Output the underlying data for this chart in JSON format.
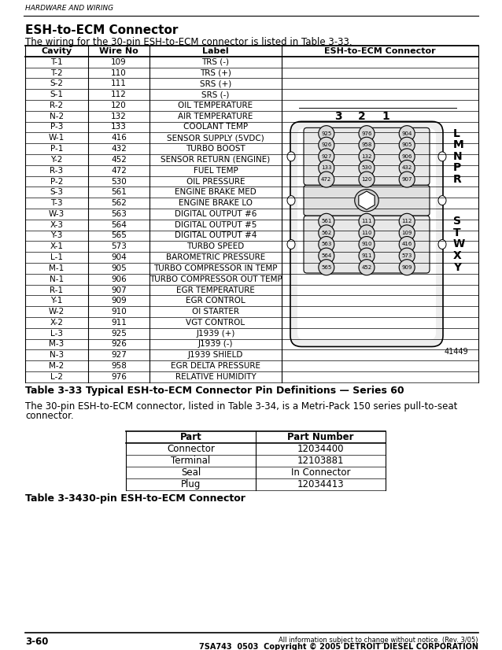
{
  "page_header": "HARDWARE AND WIRING",
  "title": "ESH-to-ECM Connector",
  "intro_text": "The wiring for the 30-pin ESH-to-ECM connector is listed in Table 3-33.",
  "table_headers": [
    "Cavity",
    "Wire No",
    "Label",
    "ESH-to-ECM Connector"
  ],
  "table_rows": [
    [
      "T-1",
      "109",
      "TRS (-)"
    ],
    [
      "T-2",
      "110",
      "TRS (+)"
    ],
    [
      "S-2",
      "111",
      "SRS (+)"
    ],
    [
      "S-1",
      "112",
      "SRS (-)"
    ],
    [
      "R-2",
      "120",
      "OIL TEMPERATURE"
    ],
    [
      "N-2",
      "132",
      "AIR TEMPERATURE"
    ],
    [
      "P-3",
      "133",
      "COOLANT TEMP"
    ],
    [
      "W-1",
      "416",
      "SENSOR SUPPLY (5VDC)"
    ],
    [
      "P-1",
      "432",
      "TURBO BOOST"
    ],
    [
      "Y-2",
      "452",
      "SENSOR RETURN (ENGINE)"
    ],
    [
      "R-3",
      "472",
      "FUEL TEMP"
    ],
    [
      "P-2",
      "530",
      "OIL PRESSURE"
    ],
    [
      "S-3",
      "561",
      "ENGINE BRAKE MED"
    ],
    [
      "T-3",
      "562",
      "ENGINE BRAKE LO"
    ],
    [
      "W-3",
      "563",
      "DIGITAL OUTPUT #6"
    ],
    [
      "X-3",
      "564",
      "DIGITAL OUTPUT #5"
    ],
    [
      "Y-3",
      "565",
      "DIGITAL OUTPUT #4"
    ],
    [
      "X-1",
      "573",
      "TURBO SPEED"
    ],
    [
      "L-1",
      "904",
      "BAROMETRIC PRESSURE"
    ],
    [
      "M-1",
      "905",
      "TURBO COMPRESSOR IN TEMP"
    ],
    [
      "N-1",
      "906",
      "TURBO COMPRESSOR OUT TEMP"
    ],
    [
      "R-1",
      "907",
      "EGR TEMPERATURE"
    ],
    [
      "Y-1",
      "909",
      "EGR CONTROL"
    ],
    [
      "W-2",
      "910",
      "OI STARTER"
    ],
    [
      "X-2",
      "911",
      "VGT CONTROL"
    ],
    [
      "L-3",
      "925",
      "J1939 (+)"
    ],
    [
      "M-3",
      "926",
      "J1939 (-)"
    ],
    [
      "N-3",
      "927",
      "J1939 SHIELD"
    ],
    [
      "M-2",
      "958",
      "EGR DELTA PRESSURE"
    ],
    [
      "L-2",
      "976",
      "RELATIVE HUMIDITY"
    ]
  ],
  "table_caption_bold": "Table 3-33",
  "table_caption_rest": "     Typical ESH-to-ECM Connector Pin Definitions — Series 60",
  "paragraph2": "The 30-pin ESH-to-ECM connector, listed in Table 3-34, is a Metri-Pack 150 series pull-to-seat connector.",
  "table2_headers": [
    "Part",
    "Part Number"
  ],
  "table2_rows": [
    [
      "Connector",
      "12034400"
    ],
    [
      "Terminal",
      "12103881"
    ],
    [
      "Seal",
      "In Connector"
    ],
    [
      "Plug",
      "12034413"
    ]
  ],
  "table2_caption_bold": "Table 3-34",
  "table2_caption_rest": "    30-pin ESH-to-ECM Connector",
  "footer_left": "3-60",
  "footer_right1": "All information subject to change without notice. (Rev. 3/05)",
  "footer_right2": "7SA743  0503  Copyright © 2005 DETROIT DIESEL CORPORATION",
  "connector_rows_upper": [
    [
      "925",
      "976",
      "904"
    ],
    [
      "926",
      "958",
      "905"
    ],
    [
      "927",
      "132",
      "906"
    ],
    [
      "133",
      "530",
      "432"
    ],
    [
      "472",
      "120",
      "907"
    ]
  ],
  "connector_rows_lower": [
    [
      "561",
      "111",
      "112"
    ],
    [
      "562",
      "110",
      "109"
    ],
    [
      "563",
      "910",
      "416"
    ],
    [
      "564",
      "911",
      "573"
    ],
    [
      "565",
      "452",
      "909"
    ]
  ],
  "connector_labels_upper": [
    "L",
    "M",
    "N",
    "P",
    "R"
  ],
  "connector_labels_lower": [
    "S",
    "T",
    "W",
    "X",
    "Y"
  ],
  "connector_col_labels": [
    "3",
    "2",
    "1"
  ],
  "connector_fig_num": "41449"
}
